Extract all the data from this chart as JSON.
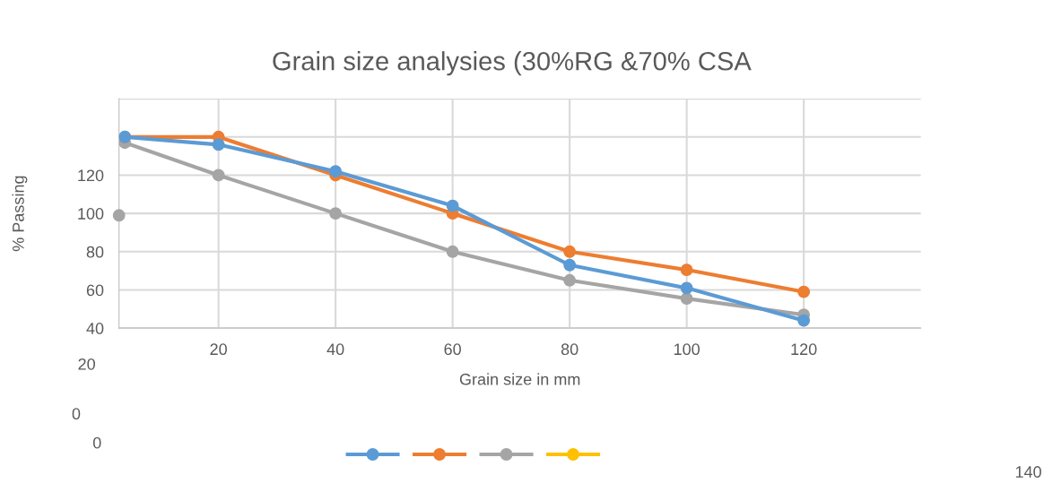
{
  "chart_data": {
    "type": "line",
    "title": "Grain size analysies (30%RG &70% CSA",
    "xlabel": "Grain size in mm",
    "ylabel": "% Passing",
    "x": [
      4,
      20,
      40,
      60,
      80,
      100,
      120
    ],
    "series": [
      {
        "color": "#5b9bd5",
        "values": [
          140,
          136,
          122,
          104,
          73,
          61,
          44
        ]
      },
      {
        "color": "#ed7d31",
        "values": [
          140,
          140,
          120,
          100,
          80,
          70.5,
          59
        ]
      },
      {
        "color": "#a5a5a5",
        "values": [
          137,
          120,
          100,
          80,
          65,
          55.5,
          47
        ]
      },
      {
        "color": "#ffc000",
        "values": [
          null,
          null,
          null,
          null,
          null,
          null,
          null
        ]
      },
      {
        "type": "scatter",
        "color": "#a5a5a5",
        "x": [
          3
        ],
        "values": [
          99
        ]
      }
    ],
    "xlim": [
      3,
      140
    ],
    "xticks": [
      20,
      40,
      60,
      80,
      100,
      120
    ],
    "ylim": [
      40,
      160
    ],
    "yticks": [
      40,
      60,
      80,
      100,
      120,
      {
        "value": 140,
        "label": null
      },
      {
        "value": 160,
        "label": null
      }
    ],
    "grid": true,
    "marker": "circle",
    "annotations": [
      "20",
      "0",
      "0",
      "140"
    ]
  }
}
